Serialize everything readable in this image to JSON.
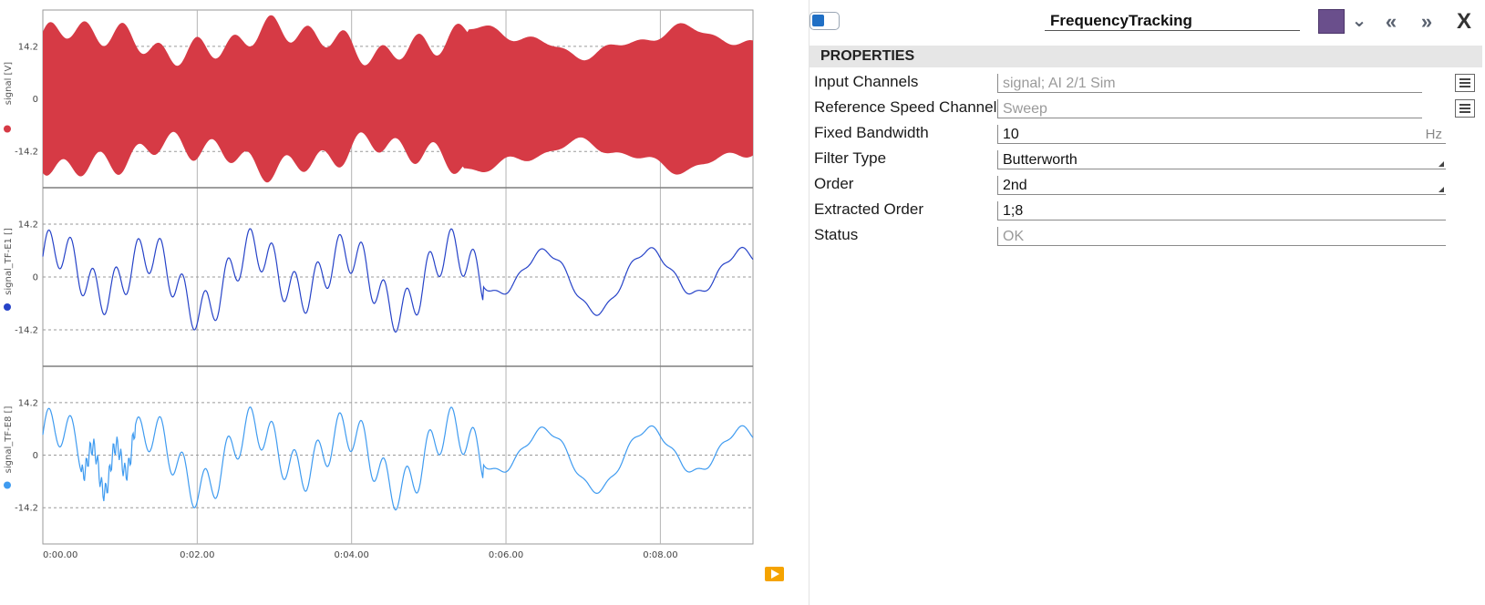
{
  "chart_data": {
    "type": "line",
    "x_ticks": [
      "0:00.00",
      "0:02.00",
      "0:04.00",
      "0:06.00",
      "0:08.00"
    ],
    "x_range": [
      0,
      9.2
    ],
    "panes": [
      {
        "name": "signal",
        "ylabel": "signal [V]",
        "color": "#d63a45",
        "yticks": [
          "14.2",
          "0",
          "-14.2"
        ],
        "ylim": [
          -24,
          24
        ],
        "kind": "filled-envelope"
      },
      {
        "name": "signal_TF-E1",
        "ylabel": "signal_TF-E1 []",
        "color": "#2643c8",
        "yticks": [
          "14.2",
          "0",
          "-14.2"
        ],
        "ylim": [
          -24,
          24
        ],
        "kind": "line"
      },
      {
        "name": "signal_TF-E8",
        "ylabel": "signal_TF-E8 []",
        "color": "#3f9bf0",
        "yticks": [
          "14.2",
          "0",
          "-14.2"
        ],
        "ylim": [
          -24,
          24
        ],
        "kind": "line"
      }
    ]
  },
  "panel": {
    "name": "FrequencyTracking",
    "accent_color": "#6a4f8c",
    "section_title": "PROPERTIES",
    "properties": [
      {
        "label": "Input Channels",
        "value": "signal; AI 2/1 Sim",
        "disabled": true,
        "list": true
      },
      {
        "label": "Reference Speed Channel",
        "value": "Sweep",
        "disabled": true,
        "list": true
      },
      {
        "label": "Fixed Bandwidth",
        "value": "10",
        "unit": "Hz"
      },
      {
        "label": "Filter Type",
        "value": "Butterworth",
        "dropdown": true
      },
      {
        "label": "Order",
        "value": "2nd",
        "dropdown": true
      },
      {
        "label": "Extracted Order",
        "value": "1;8"
      },
      {
        "label": "Status",
        "value": "OK",
        "disabled": true
      }
    ]
  }
}
